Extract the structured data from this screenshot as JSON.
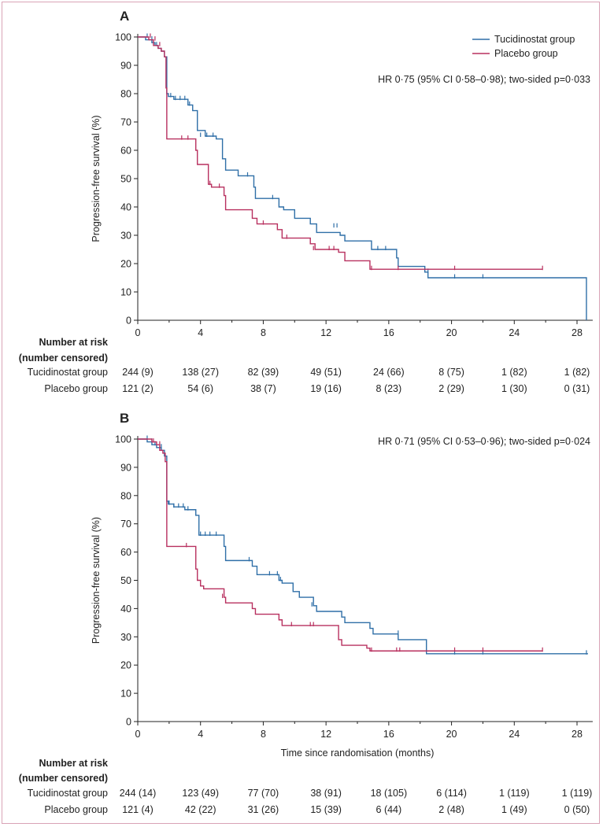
{
  "colors": {
    "tucidinostat": "#2f6fa7",
    "placebo": "#b8305f",
    "axis": "#222222",
    "frame": "#d9a3b6"
  },
  "legend": {
    "tucidinostat": "Tucidinostat group",
    "placebo": "Placebo group"
  },
  "risk_labels": {
    "header": [
      "Number at risk",
      "(number censored)"
    ],
    "tucidinostat": "Tucidinostat group",
    "placebo": "Placebo group"
  },
  "chart_data": [
    {
      "panel": "A",
      "type": "line",
      "step": true,
      "annotation": "HR 0·75 (95% CI 0·58–0·98); two-sided p=0·033",
      "xlabel": "",
      "ylabel": "Progression-free survival (%)",
      "xlim": [
        0,
        29
      ],
      "ylim": [
        0,
        100
      ],
      "xticks": [
        0,
        4,
        8,
        12,
        16,
        20,
        24,
        28
      ],
      "yticks": [
        0,
        10,
        20,
        30,
        40,
        50,
        60,
        70,
        80,
        90,
        100
      ],
      "legend_position": "top-right",
      "series": [
        {
          "name": "Tucidinostat group",
          "x": [
            0,
            0.5,
            0.9,
            1.1,
            1.3,
            1.5,
            1.7,
            1.85,
            1.95,
            2.3,
            3.2,
            3.5,
            3.8,
            4.3,
            5.0,
            5.4,
            5.6,
            6.4,
            7.4,
            7.5,
            9.0,
            9.3,
            10.0,
            11.0,
            11.4,
            12.9,
            13.2,
            14.9,
            16.5,
            16.6,
            18.3,
            18.5,
            28.6
          ],
          "y": [
            100,
            99,
            98,
            97,
            96,
            95,
            93,
            80,
            79,
            78,
            76,
            74,
            67,
            65,
            64,
            57,
            53,
            51,
            47,
            43,
            40,
            39,
            36,
            34,
            31,
            30,
            28,
            25,
            22,
            19,
            17,
            15,
            0
          ],
          "censored": [
            [
              0.6,
              100
            ],
            [
              0.9,
              99
            ],
            [
              1.2,
              97
            ],
            [
              2.1,
              79
            ],
            [
              2.4,
              78
            ],
            [
              2.7,
              78
            ],
            [
              3.0,
              78
            ],
            [
              3.3,
              76
            ],
            [
              4.0,
              65
            ],
            [
              4.4,
              65
            ],
            [
              4.8,
              65
            ],
            [
              7.0,
              51
            ],
            [
              8.6,
              43
            ],
            [
              12.5,
              33
            ],
            [
              12.7,
              33
            ],
            [
              15.3,
              25
            ],
            [
              15.8,
              25
            ],
            [
              18.5,
              17
            ],
            [
              20.2,
              15
            ],
            [
              22.0,
              15
            ]
          ]
        },
        {
          "name": "Placebo group",
          "x": [
            0,
            0.7,
            1.0,
            1.3,
            1.5,
            1.7,
            1.8,
            1.85,
            3.7,
            3.8,
            4.5,
            4.7,
            5.5,
            5.6,
            7.3,
            7.6,
            8.9,
            9.2,
            11.0,
            11.3,
            12.8,
            13.2,
            14.8
          ],
          "y": [
            100,
            99,
            97,
            96,
            95,
            93,
            82,
            64,
            60,
            55,
            48,
            47,
            44,
            39,
            36,
            34,
            32,
            29,
            27,
            25,
            24,
            21,
            18
          ],
          "censored": [
            [
              0.8,
              100
            ],
            [
              1.1,
              99
            ],
            [
              1.4,
              97
            ],
            [
              2.8,
              64
            ],
            [
              3.2,
              64
            ],
            [
              4.6,
              48
            ],
            [
              5.2,
              47
            ],
            [
              8.0,
              34
            ],
            [
              9.5,
              29
            ],
            [
              11.2,
              25
            ],
            [
              12.2,
              25
            ],
            [
              12.5,
              25
            ],
            [
              14.9,
              18
            ],
            [
              16.6,
              18
            ],
            [
              20.2,
              18
            ],
            [
              25.8,
              18
            ]
          ],
          "end_x": 25.8
        }
      ],
      "risk_table": {
        "times": [
          0,
          4,
          8,
          12,
          16,
          20,
          24,
          28
        ],
        "tucidinostat": [
          "244 (9)",
          "138 (27)",
          "82 (39)",
          "49 (51)",
          "24 (66)",
          "8 (75)",
          "1 (82)",
          "1 (82)"
        ],
        "placebo": [
          "121 (2)",
          "54 (6)",
          "38 (7)",
          "19 (16)",
          "8 (23)",
          "2 (29)",
          "1 (30)",
          "0 (31)"
        ]
      }
    },
    {
      "panel": "B",
      "type": "line",
      "step": true,
      "annotation": "HR 0·71 (95% CI 0·53–0·96); two-sided p=0·024",
      "xlabel": "Time since randomisation (months)",
      "ylabel": "Progression-free survival (%)",
      "xlim": [
        0,
        29
      ],
      "ylim": [
        0,
        100
      ],
      "xticks": [
        0,
        4,
        8,
        12,
        16,
        20,
        24,
        28
      ],
      "yticks": [
        0,
        10,
        20,
        30,
        40,
        50,
        60,
        70,
        80,
        90,
        100
      ],
      "series": [
        {
          "name": "Tucidinostat group",
          "x": [
            0,
            0.6,
            0.9,
            1.2,
            1.5,
            1.7,
            1.85,
            1.95,
            2.3,
            3.0,
            3.7,
            3.9,
            5.5,
            5.6,
            7.3,
            7.6,
            9.0,
            9.2,
            9.9,
            10.3,
            11.2,
            11.4,
            13.0,
            13.2,
            14.8,
            15.0,
            16.6,
            18.4,
            28.7
          ],
          "y": [
            100,
            99,
            98,
            97,
            96,
            94,
            78,
            77,
            76,
            75,
            73,
            66,
            62,
            57,
            55,
            52,
            50,
            49,
            46,
            44,
            41,
            39,
            37,
            35,
            33,
            31,
            29,
            24,
            24
          ],
          "censored": [
            [
              0.6,
              100
            ],
            [
              0.9,
              99
            ],
            [
              1.1,
              98
            ],
            [
              1.5,
              97
            ],
            [
              2.0,
              77
            ],
            [
              2.3,
              76
            ],
            [
              2.6,
              76
            ],
            [
              2.9,
              76
            ],
            [
              3.2,
              75
            ],
            [
              4.0,
              66
            ],
            [
              4.3,
              66
            ],
            [
              4.6,
              66
            ],
            [
              5.0,
              66
            ],
            [
              7.1,
              57
            ],
            [
              8.4,
              52
            ],
            [
              8.9,
              52
            ],
            [
              9.1,
              50
            ],
            [
              11.1,
              41
            ],
            [
              16.6,
              31
            ],
            [
              20.2,
              24
            ],
            [
              22.0,
              24
            ],
            [
              28.6,
              24
            ]
          ]
        },
        {
          "name": "Placebo group",
          "x": [
            0,
            0.9,
            1.2,
            1.4,
            1.6,
            1.75,
            1.85,
            3.7,
            3.8,
            4.0,
            4.2,
            5.5,
            5.6,
            7.3,
            7.5,
            9.0,
            9.2,
            12.8,
            13.0,
            14.6,
            14.8
          ],
          "y": [
            100,
            99,
            98,
            96,
            95,
            92,
            62,
            54,
            50,
            48,
            47,
            44,
            42,
            40,
            38,
            36,
            34,
            29,
            27,
            26,
            25
          ],
          "censored": [
            [
              1.0,
              99
            ],
            [
              1.4,
              98
            ],
            [
              3.1,
              62
            ],
            [
              5.4,
              44
            ],
            [
              9.8,
              34
            ],
            [
              11.0,
              34
            ],
            [
              11.2,
              34
            ],
            [
              14.9,
              25
            ],
            [
              16.5,
              25
            ],
            [
              16.7,
              25
            ],
            [
              20.2,
              25
            ],
            [
              22.0,
              25
            ],
            [
              25.8,
              25
            ]
          ],
          "end_x": 25.8
        }
      ],
      "risk_table": {
        "times": [
          0,
          4,
          8,
          12,
          16,
          20,
          24,
          28
        ],
        "tucidinostat": [
          "244 (14)",
          "123 (49)",
          "77 (70)",
          "38 (91)",
          "18 (105)",
          "6 (114)",
          "1 (119)",
          "1 (119)"
        ],
        "placebo": [
          "121 (4)",
          "42 (22)",
          "31 (26)",
          "15 (39)",
          "6 (44)",
          "2 (48)",
          "1 (49)",
          "0 (50)"
        ]
      }
    }
  ]
}
